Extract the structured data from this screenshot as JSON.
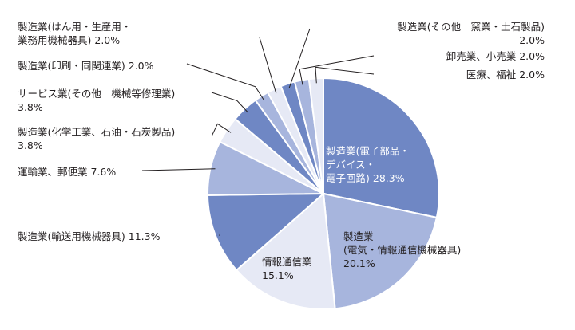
{
  "chart_data": {
    "type": "pie",
    "start_angle_deg": 0,
    "direction": "clockwise",
    "slices": [
      {
        "label": "製造業(電子部品・\nデバイス・\n電子回路)",
        "value": 28.3,
        "value_label": "28.3%",
        "color": "#6f87c4"
      },
      {
        "label": "製造業\n(電気・情報通信機械器具)",
        "value": 20.1,
        "value_label": "20.1%",
        "color": "#a7b5dd"
      },
      {
        "label": "情報通信業",
        "value": 15.1,
        "value_label": "15.1%",
        "color": "#e6e9f5"
      },
      {
        "label": "製造業(輸送用機械器具)",
        "value": 11.3,
        "value_label": "11.3%",
        "color": "#6f87c4"
      },
      {
        "label": "運輸業、郵便業",
        "value": 7.6,
        "value_label": "7.6%",
        "color": "#a7b5dd"
      },
      {
        "label": "製造業(化学工業、石油・石炭製品)",
        "value": 3.8,
        "value_label": "3.8%",
        "color": "#e6e9f5"
      },
      {
        "label": "サービス業(その他　機械等修理業)",
        "value": 3.8,
        "value_label": "3.8%",
        "color": "#6f87c4"
      },
      {
        "label": "製造業(印刷・同関連業)",
        "value": 2.0,
        "value_label": "2.0%",
        "color": "#a7b5dd"
      },
      {
        "label": "製造業(はん用・生産用・\n業務用機械器具)",
        "value": 2.0,
        "value_label": "2.0%",
        "color": "#e6e9f5"
      },
      {
        "label": "製造業(その他　窯業・土石製品)",
        "value": 2.0,
        "value_label": "2.0%",
        "color": "#6f87c4"
      },
      {
        "label": "卸売業、小売業",
        "value": 2.0,
        "value_label": "2.0%",
        "color": "#a7b5dd"
      },
      {
        "label": "医療、福祉",
        "value": 2.0,
        "value_label": "2.0%",
        "color": "#e6e9f5"
      }
    ]
  }
}
